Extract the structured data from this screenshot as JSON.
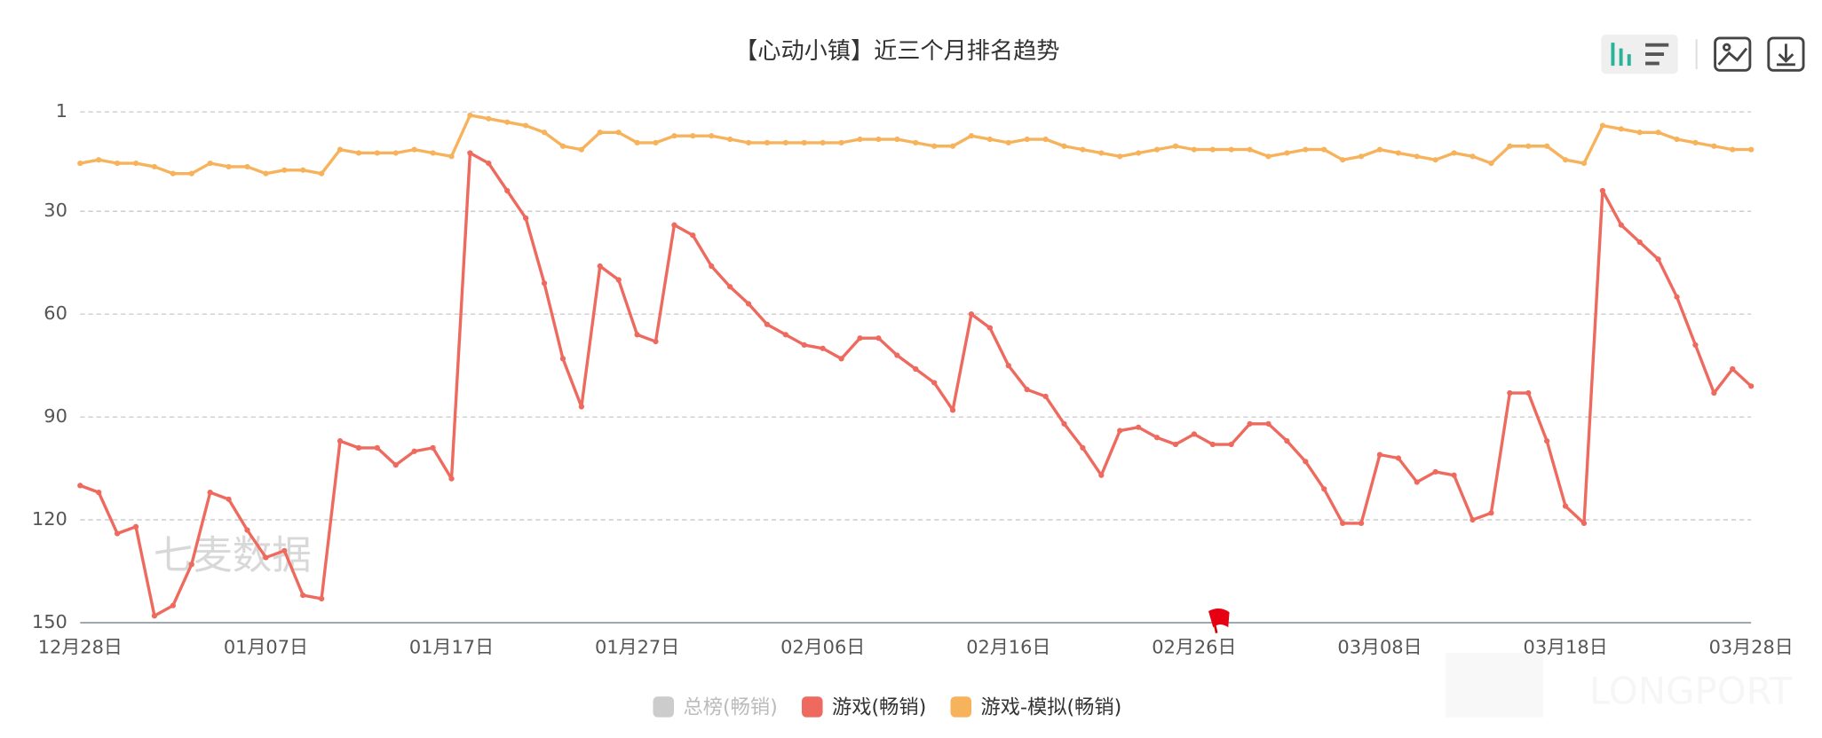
{
  "chart_data": {
    "type": "line",
    "title": "【心动小镇】近三个月排名趋势",
    "watermark": "七麦数据",
    "corner_watermark": "LONGPORT",
    "categories": [
      "12月28日",
      null,
      null,
      null,
      null,
      null,
      null,
      null,
      null,
      null,
      "01月07日",
      null,
      null,
      null,
      null,
      null,
      null,
      null,
      null,
      null,
      "01月17日",
      null,
      null,
      null,
      null,
      null,
      null,
      null,
      null,
      null,
      "01月27日",
      null,
      null,
      null,
      null,
      null,
      null,
      null,
      null,
      null,
      "02月06日",
      null,
      null,
      null,
      null,
      null,
      null,
      null,
      null,
      null,
      "02月16日",
      null,
      null,
      null,
      null,
      null,
      null,
      null,
      null,
      null,
      "02月26日",
      null,
      null,
      null,
      null,
      null,
      null,
      null,
      null,
      null,
      "03月08日",
      null,
      null,
      null,
      null,
      null,
      null,
      null,
      null,
      null,
      "03月18日",
      null,
      null,
      null,
      null,
      null,
      null,
      null,
      null,
      null,
      "03月28日"
    ],
    "ylim": [
      1,
      150
    ],
    "y_inverted": true,
    "yticks": [
      1,
      30,
      60,
      90,
      120,
      150
    ],
    "grid": true,
    "legend": "bottom",
    "series": [
      {
        "name": "总榜(畅销)",
        "color": "#cccccc",
        "visible": false,
        "values": [
          null,
          null,
          null,
          null,
          null,
          null,
          null,
          null,
          null,
          null,
          null,
          null,
          null,
          null,
          null,
          null,
          null,
          null,
          null,
          null,
          null,
          null,
          null,
          null,
          null,
          null,
          null,
          null,
          null,
          null,
          null,
          null,
          null,
          null,
          null,
          null,
          null,
          null,
          null,
          null,
          null,
          null,
          null,
          null,
          null,
          null,
          null,
          null,
          null,
          null,
          null,
          null,
          null,
          null,
          null,
          null,
          null,
          null,
          null,
          null,
          null,
          null,
          null,
          null,
          null,
          null,
          null,
          null,
          null,
          null,
          null,
          null,
          null,
          null,
          null,
          null,
          null,
          null,
          null,
          null,
          null,
          null,
          null,
          null,
          null,
          null,
          null,
          null,
          null,
          null,
          null
        ]
      },
      {
        "name": "游戏(畅销)",
        "color": "#ee6a5f",
        "visible": true,
        "values": [
          110,
          112,
          124,
          122,
          148,
          145,
          133,
          112,
          114,
          123,
          131,
          129,
          142,
          143,
          97,
          99,
          99,
          104,
          100,
          99,
          108,
          13,
          16,
          24,
          32,
          51,
          73,
          87,
          46,
          50,
          66,
          68,
          34,
          37,
          46,
          52,
          57,
          63,
          66,
          69,
          70,
          73,
          67,
          67,
          72,
          76,
          80,
          88,
          60,
          64,
          75,
          82,
          84,
          92,
          99,
          107,
          94,
          93,
          96,
          98,
          95,
          98,
          98,
          92,
          92,
          97,
          103,
          111,
          121,
          121,
          101,
          102,
          109,
          106,
          107,
          120,
          118,
          83,
          83,
          97,
          116,
          121,
          24,
          34,
          39,
          44,
          55,
          69,
          83,
          76,
          81
        ]
      },
      {
        "name": "游戏-模拟(畅销)",
        "color": "#f7b35c",
        "visible": true,
        "values": [
          16,
          15,
          16,
          16,
          17,
          19,
          19,
          16,
          17,
          17,
          19,
          18,
          18,
          19,
          12,
          13,
          13,
          13,
          12,
          13,
          14,
          2,
          3,
          4,
          5,
          7,
          11,
          12,
          7,
          7,
          10,
          10,
          8,
          8,
          8,
          9,
          10,
          10,
          10,
          10,
          10,
          10,
          9,
          9,
          9,
          10,
          11,
          11,
          8,
          9,
          10,
          9,
          9,
          11,
          12,
          13,
          14,
          13,
          12,
          11,
          12,
          12,
          12,
          12,
          14,
          13,
          12,
          12,
          15,
          14,
          12,
          13,
          14,
          15,
          13,
          14,
          16,
          11,
          11,
          11,
          15,
          16,
          5,
          6,
          7,
          7,
          9,
          10,
          11,
          12,
          12
        ]
      }
    ]
  }
}
